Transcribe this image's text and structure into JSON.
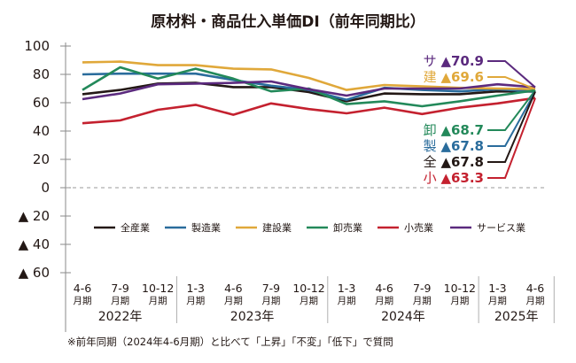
{
  "chart_data": {
    "type": "line",
    "title": "原材料・商品仕入単価DI（前年同期比）",
    "note": "※前年同期（2024年4-6月期）と比べて「上昇」「不変」「低下」で質問",
    "xlabel": "",
    "ylabel": "",
    "ylim": [
      -60,
      100
    ],
    "y_ticks": [
      100,
      80,
      60,
      40,
      20,
      0,
      -20,
      -40,
      -60
    ],
    "y_tick_labels": [
      "100",
      "80",
      "60",
      "40",
      "20",
      "0",
      "▲ 20",
      "▲ 40",
      "▲ 60"
    ],
    "categories": [
      "4-6月期 2022年",
      "7-9月期 2022年",
      "10-12月期 2022年",
      "1-3月期 2023年",
      "4-6月期 2023年",
      "7-9月期 2023年",
      "10-12月期 2023年",
      "1-3月期 2024年",
      "4-6月期 2024年",
      "7-9月期 2024年",
      "10-12月期 2024年",
      "1-3月期 2025年",
      "4-6月期 2025年"
    ],
    "x_quarter_labels": [
      "4-6",
      "7-9",
      "10-12",
      "1-3",
      "4-6",
      "7-9",
      "10-12",
      "1-3",
      "4-6",
      "7-9",
      "10-12",
      "1-3",
      "4-6"
    ],
    "x_suffix": "月期",
    "year_groups": [
      {
        "label": "2022年",
        "count": 3
      },
      {
        "label": "2023年",
        "count": 4
      },
      {
        "label": "2024年",
        "count": 4
      },
      {
        "label": "2025年",
        "count": 2
      }
    ],
    "zero_line": "dashed",
    "legend_position": "bottom-center",
    "series": [
      {
        "name": "全産業",
        "short": "全",
        "color": "#231815",
        "values": [
          66.0,
          69.0,
          73.5,
          74.0,
          71.0,
          71.0,
          67.5,
          61.0,
          66.5,
          66.0,
          66.0,
          68.0,
          67.8
        ],
        "annotation": "▲67.8"
      },
      {
        "name": "製造業",
        "short": "製",
        "color": "#2a6c9c",
        "values": [
          80.0,
          80.5,
          80.5,
          80.5,
          76.0,
          72.0,
          69.0,
          62.0,
          70.5,
          69.0,
          68.0,
          69.5,
          67.8
        ],
        "annotation": "▲67.8"
      },
      {
        "name": "建設業",
        "short": "建",
        "color": "#e0a83a",
        "values": [
          88.5,
          89.0,
          86.5,
          86.5,
          84.0,
          83.5,
          77.5,
          69.0,
          72.5,
          71.5,
          70.5,
          70.0,
          69.6
        ],
        "annotation": "▲69.6"
      },
      {
        "name": "卸売業",
        "short": "卸",
        "color": "#23895a",
        "values": [
          69.0,
          85.0,
          77.0,
          84.0,
          77.0,
          68.0,
          70.0,
          59.0,
          61.0,
          57.5,
          61.0,
          65.0,
          68.7
        ],
        "annotation": "▲68.7"
      },
      {
        "name": "小売業",
        "short": "小",
        "color": "#c4212f",
        "values": [
          45.5,
          47.5,
          55.0,
          58.5,
          51.5,
          59.5,
          55.5,
          52.5,
          56.5,
          52.0,
          56.5,
          59.5,
          63.3
        ],
        "annotation": "▲63.3"
      },
      {
        "name": "サービス業",
        "short": "サ",
        "color": "#5b2a7e",
        "values": [
          62.5,
          66.5,
          73.0,
          73.5,
          74.0,
          75.0,
          69.5,
          65.0,
          70.0,
          70.0,
          70.0,
          73.0,
          70.9
        ],
        "annotation": "▲70.9"
      }
    ]
  }
}
